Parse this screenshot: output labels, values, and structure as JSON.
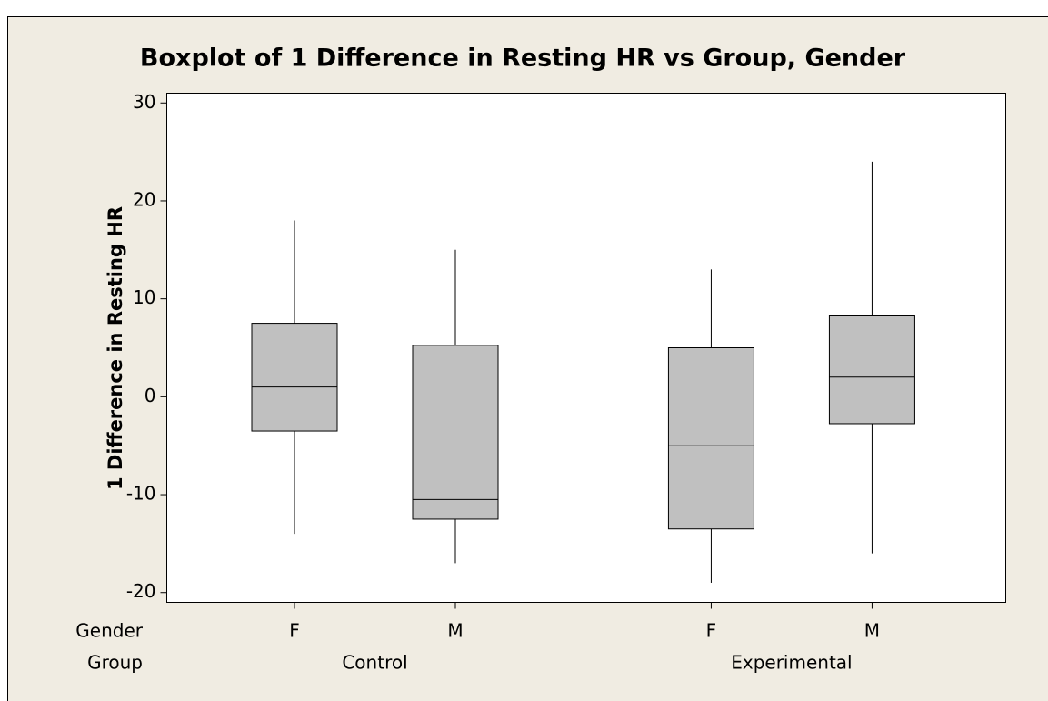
{
  "chart_data": {
    "type": "box",
    "title": "Boxplot of 1 Difference in Resting HR vs Group, Gender",
    "y_label": "1 Difference in Resting HR",
    "x_row_labels": [
      "Gender",
      "Group"
    ],
    "categories": [
      "F",
      "M",
      "F",
      "M"
    ],
    "groups": [
      "Control",
      "Control",
      "Experimental",
      "Experimental"
    ],
    "group_labels": [
      "Control",
      "Experimental"
    ],
    "color": "#c0c0c0",
    "boxes": [
      {
        "whisker_low": -14,
        "q1": -3.5,
        "median": 1,
        "q3": 7.5,
        "whisker_high": 18
      },
      {
        "whisker_low": -17,
        "q1": -12.5,
        "median": -10.5,
        "q3": 5.25,
        "whisker_high": 15
      },
      {
        "whisker_low": -19,
        "q1": -13.5,
        "median": -5,
        "q3": 5,
        "whisker_high": 13
      },
      {
        "whisker_low": -16,
        "q1": -2.75,
        "median": 2,
        "q3": 8.25,
        "whisker_high": 24
      }
    ],
    "ylim": [
      -21,
      31
    ],
    "yticks": [
      -20,
      -10,
      0,
      10,
      20,
      30
    ]
  }
}
